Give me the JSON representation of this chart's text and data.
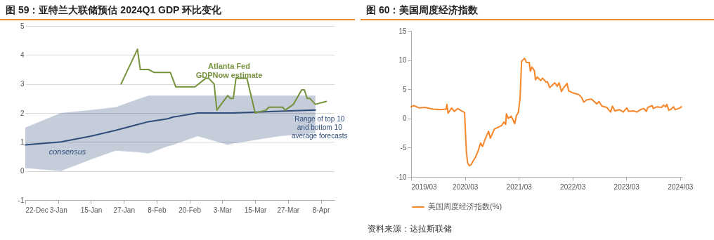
{
  "chart_data": [
    {
      "type": "line",
      "title": "图 59：亚特兰大联储预估 2024Q1 GDP 环比变化",
      "xlim": [
        "2023-12-22",
        "2024-04-13"
      ],
      "xticks": [
        {
          "value": "2023-12-22",
          "label": "22-Dec"
        },
        {
          "value": "2024-01-03",
          "label": "3-Jan"
        },
        {
          "value": "2024-01-15",
          "label": "15-Jan"
        },
        {
          "value": "2024-01-27",
          "label": "27-Jan"
        },
        {
          "value": "2024-02-08",
          "label": "8-Feb"
        },
        {
          "value": "2024-02-20",
          "label": "20-Feb"
        },
        {
          "value": "2024-03-03",
          "label": "3-Mar"
        },
        {
          "value": "2024-03-15",
          "label": "15-Mar"
        },
        {
          "value": "2024-03-27",
          "label": "27-Mar"
        },
        {
          "value": "2024-04-08",
          "label": "8-Apr"
        }
      ],
      "ylim": [
        -1,
        5
      ],
      "yticks": [
        -1,
        0,
        1,
        2,
        3,
        4,
        5
      ],
      "grid": "y",
      "annotations": [
        {
          "text": "Range of top 10 and bottom 10 average forecasts",
          "x": "2024-04-06",
          "y": 2.0
        }
      ],
      "series": [
        {
          "name": "consensus",
          "color": "#2e4d7b",
          "x": [
            "2023-12-22",
            "2024-01-04",
            "2024-01-15",
            "2024-01-24",
            "2024-02-01",
            "2024-02-05",
            "2024-02-12",
            "2024-02-14",
            "2024-02-23",
            "2024-03-05",
            "2024-03-07",
            "2024-03-24",
            "2024-04-06"
          ],
          "values": [
            0.9,
            1.0,
            1.2,
            1.4,
            1.6,
            1.7,
            1.8,
            1.86,
            2.0,
            2.0,
            2.0,
            2.06,
            2.1
          ],
          "lower": [
            0.1,
            0.0,
            0.4,
            0.7,
            0.65,
            0.6,
            0.85,
            0.9,
            1.2,
            0.9,
            0.95,
            1.2,
            1.3
          ],
          "upper": [
            1.5,
            2.0,
            2.1,
            2.2,
            2.47,
            2.6,
            2.6,
            2.6,
            2.6,
            2.6,
            2.6,
            2.6,
            2.6
          ]
        },
        {
          "name": "Atlanta Fed GDPNow estimate",
          "color": "#76923c",
          "x": [
            "2024-01-26",
            "2024-02-01",
            "2024-02-02",
            "2024-02-05",
            "2024-02-07",
            "2024-02-13",
            "2024-02-15",
            "2024-02-22",
            "2024-02-26",
            "2024-02-27",
            "2024-02-29",
            "2024-03-01",
            "2024-03-05",
            "2024-03-06",
            "2024-03-07",
            "2024-03-08",
            "2024-03-12",
            "2024-03-15",
            "2024-03-19",
            "2024-03-20",
            "2024-03-25",
            "2024-03-26",
            "2024-03-29",
            "2024-04-01",
            "2024-04-02",
            "2024-04-03",
            "2024-04-04",
            "2024-04-06",
            "2024-04-10"
          ],
          "values": [
            3.0,
            4.2,
            3.5,
            3.5,
            3.4,
            3.4,
            2.9,
            2.9,
            3.2,
            3.2,
            3.0,
            2.1,
            2.6,
            2.5,
            2.5,
            3.2,
            3.2,
            2.0,
            2.1,
            2.2,
            2.2,
            2.1,
            2.3,
            2.8,
            2.8,
            2.5,
            2.5,
            2.3,
            2.4
          ]
        }
      ]
    },
    {
      "type": "line",
      "title": "图 60：美国周度经济指数",
      "xlim": [
        "2019-03-01",
        "2024-03-16"
      ],
      "xticks": [
        {
          "value": "2019-03",
          "label": "2019/03"
        },
        {
          "value": "2020-03",
          "label": "2020/03"
        },
        {
          "value": "2021-03",
          "label": "2021/03"
        },
        {
          "value": "2022-03",
          "label": "2022/03"
        },
        {
          "value": "2023-03",
          "label": "2023/03"
        },
        {
          "value": "2024-03",
          "label": "2024/03"
        }
      ],
      "ylim": [
        -10,
        15
      ],
      "yticks": [
        -10,
        -5,
        0,
        5,
        10,
        15
      ],
      "legend": "bottom",
      "annotations": [
        "资料来源：达拉斯联储"
      ],
      "series": [
        {
          "name": "美国周度经济指数(%)",
          "color": "#f5862a",
          "x": [
            "2019-03-01",
            "2019-03-20",
            "2019-04-25",
            "2019-06-01",
            "2019-07-28",
            "2019-09-15",
            "2019-10-25",
            "2019-10-30",
            "2019-11-07",
            "2019-12-01",
            "2019-12-20",
            "2020-01-10",
            "2020-02-14",
            "2020-02-27",
            "2020-03-10",
            "2020-03-19",
            "2020-03-31",
            "2020-04-12",
            "2020-04-25",
            "2020-05-10",
            "2020-05-27",
            "2020-06-15",
            "2020-06-28",
            "2020-07-15",
            "2020-08-08",
            "2020-08-20",
            "2020-09-17",
            "2020-11-05",
            "2020-11-20",
            "2020-12-02",
            "2020-12-07",
            "2020-12-20",
            "2021-01-08",
            "2021-02-02",
            "2021-02-13",
            "2021-02-26",
            "2021-03-10",
            "2021-03-20",
            "2021-04-10",
            "2021-04-22",
            "2021-05-11",
            "2021-05-19",
            "2021-05-29",
            "2021-06-15",
            "2021-06-23",
            "2021-07-04",
            "2021-07-28",
            "2021-08-10",
            "2021-09-03",
            "2021-09-11",
            "2021-09-27",
            "2021-11-01",
            "2021-11-17",
            "2021-11-30",
            "2021-12-16",
            "2021-12-29",
            "2022-01-23",
            "2022-02-03",
            "2022-03-02",
            "2022-04-12",
            "2022-05-02",
            "2022-05-16",
            "2022-06-06",
            "2022-07-08",
            "2022-08-12",
            "2022-08-28",
            "2022-09-17",
            "2022-10-19",
            "2022-11-15",
            "2022-11-27",
            "2022-12-14",
            "2023-01-14",
            "2023-02-09",
            "2023-03-04",
            "2023-03-17",
            "2023-04-18",
            "2023-05-12",
            "2023-06-05",
            "2023-06-29",
            "2023-07-15",
            "2023-07-26",
            "2023-08-24",
            "2023-09-01",
            "2023-09-25",
            "2023-10-27",
            "2023-11-10",
            "2023-11-23",
            "2023-12-02",
            "2023-12-15",
            "2023-12-31",
            "2024-01-16",
            "2024-01-27",
            "2024-02-28",
            "2024-03-10"
          ],
          "values": [
            2.0,
            2.2,
            1.8,
            1.9,
            1.6,
            1.5,
            1.6,
            2.4,
            0.9,
            1.8,
            1.2,
            1.7,
            1.2,
            1.0,
            -5.7,
            -7.6,
            -8.1,
            -7.9,
            -7.3,
            -6.7,
            -5.7,
            -4.2,
            -4.8,
            -3.6,
            -2.2,
            -3.4,
            -1.8,
            -1.2,
            -0.6,
            -1.0,
            0.8,
            0.0,
            0.4,
            -0.9,
            0.5,
            1.0,
            3.5,
            9.8,
            10.3,
            9.6,
            9.6,
            8.1,
            8.8,
            8.2,
            6.6,
            7.1,
            6.5,
            6.9,
            6.2,
            6.3,
            5.3,
            6.1,
            5.5,
            6.1,
            4.6,
            5.2,
            6.0,
            4.7,
            4.4,
            4.1,
            3.6,
            2.8,
            3.2,
            3.3,
            2.5,
            2.9,
            2.1,
            1.9,
            1.1,
            2.1,
            1.3,
            1.5,
            1.1,
            1.8,
            1.2,
            1.3,
            1.1,
            1.5,
            1.7,
            1.2,
            1.9,
            2.2,
            1.7,
            2.0,
            1.9,
            2.3,
            2.0,
            2.4,
            1.4,
            1.6,
            2.0,
            1.5,
            1.8,
            2.0
          ]
        }
      ]
    }
  ]
}
